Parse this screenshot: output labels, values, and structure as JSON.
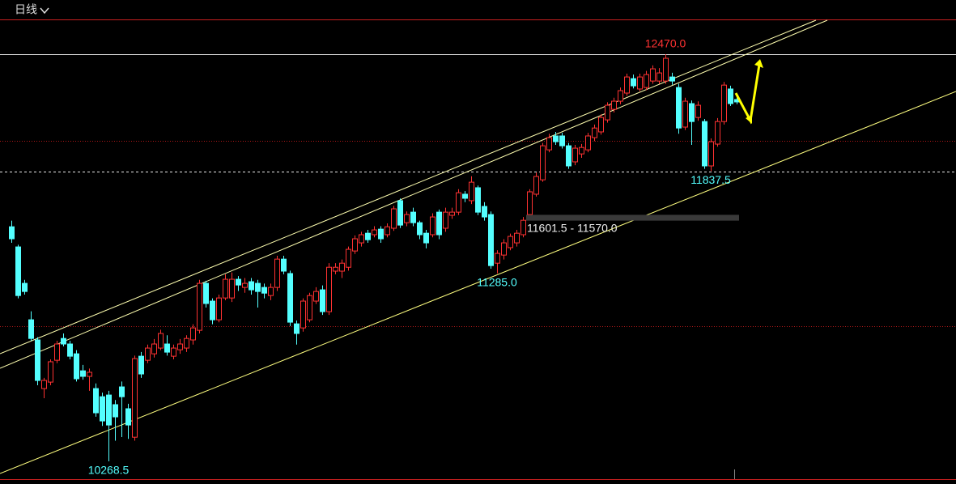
{
  "chart_data": {
    "type": "candlestick",
    "period_label": "日线",
    "up_color": "#ff3232",
    "down_color": "#54ffff",
    "candles": [
      [
        11537,
        11570,
        11450,
        11472
      ],
      [
        11428,
        11440,
        11150,
        11165
      ],
      [
        11231,
        11250,
        11170,
        11187
      ],
      [
        11034,
        11080,
        10920,
        10933
      ],
      [
        10925,
        10940,
        10680,
        10706
      ],
      [
        10662,
        10720,
        10610,
        10706
      ],
      [
        10697,
        10820,
        10680,
        10807
      ],
      [
        10815,
        10920,
        10800,
        10903
      ],
      [
        10933,
        10960,
        10890,
        10903
      ],
      [
        10903,
        10920,
        10820,
        10837
      ],
      [
        10850,
        10870,
        10700,
        10715
      ],
      [
        10758,
        10790,
        10710,
        10728
      ],
      [
        10728,
        10770,
        10650,
        10750
      ],
      [
        10662,
        10690,
        10510,
        10531
      ],
      [
        10618,
        10640,
        10460,
        10487
      ],
      [
        10627,
        10650,
        10268.5,
        10465
      ],
      [
        10575,
        10600,
        10380,
        10509
      ],
      [
        10671,
        10700,
        10400,
        10618
      ],
      [
        10553,
        10580,
        10390,
        10465
      ],
      [
        10399,
        10840,
        10380,
        10824
      ],
      [
        10837,
        10860,
        10720,
        10741
      ],
      [
        10815,
        10900,
        10800,
        10881
      ],
      [
        10850,
        10930,
        10830,
        10903
      ],
      [
        10881,
        10980,
        10870,
        10960
      ],
      [
        10903,
        10950,
        10840,
        10859
      ],
      [
        10837,
        10900,
        10820,
        10881
      ],
      [
        10872,
        10930,
        10850,
        10903
      ],
      [
        10881,
        10950,
        10860,
        10933
      ],
      [
        10925,
        11010,
        10900,
        10990
      ],
      [
        10977,
        11250,
        10960,
        11231
      ],
      [
        11231,
        11245,
        11100,
        11122
      ],
      [
        11135,
        11150,
        11010,
        11034
      ],
      [
        11034,
        11170,
        11020,
        11152
      ],
      [
        11152,
        11280,
        11140,
        11253
      ],
      [
        11152,
        11290,
        11130,
        11253
      ],
      [
        11253,
        11270,
        11190,
        11222
      ],
      [
        11209,
        11260,
        11180,
        11231
      ],
      [
        11240,
        11260,
        11170,
        11196
      ],
      [
        11231,
        11250,
        11100,
        11187
      ],
      [
        11209,
        11230,
        11150,
        11178
      ],
      [
        11165,
        11230,
        11140,
        11209
      ],
      [
        11209,
        11380,
        11190,
        11362
      ],
      [
        11362,
        11380,
        11280,
        11297
      ],
      [
        11284,
        11300,
        11000,
        11021
      ],
      [
        11012,
        11030,
        10900,
        10960
      ],
      [
        10990,
        11150,
        10970,
        11135
      ],
      [
        11034,
        11180,
        11020,
        11165
      ],
      [
        11135,
        11210,
        11120,
        11187
      ],
      [
        11196,
        11220,
        11060,
        11078
      ],
      [
        11078,
        11340,
        11060,
        11318
      ],
      [
        11297,
        11340,
        11280,
        11318
      ],
      [
        11297,
        11360,
        11260,
        11340
      ],
      [
        11318,
        11430,
        11300,
        11415
      ],
      [
        11406,
        11490,
        11390,
        11472
      ],
      [
        11450,
        11510,
        11430,
        11494
      ],
      [
        11502,
        11520,
        11450,
        11467
      ],
      [
        11494,
        11540,
        11480,
        11520
      ],
      [
        11524,
        11540,
        11450,
        11472
      ],
      [
        11494,
        11555,
        11480,
        11537
      ],
      [
        11529,
        11650,
        11515,
        11634
      ],
      [
        11678,
        11690,
        11530,
        11546
      ],
      [
        11559,
        11620,
        11540,
        11603
      ],
      [
        11616,
        11640,
        11540,
        11559
      ],
      [
        11559,
        11570,
        11470,
        11494
      ],
      [
        11502,
        11520,
        11420,
        11450
      ],
      [
        11494,
        11610,
        11480,
        11590
      ],
      [
        11616,
        11630,
        11470,
        11494
      ],
      [
        11529,
        11640,
        11510,
        11616
      ],
      [
        11599,
        11640,
        11580,
        11616
      ],
      [
        11616,
        11740,
        11600,
        11721
      ],
      [
        11713,
        11730,
        11670,
        11691
      ],
      [
        11678,
        11810,
        11660,
        11778
      ],
      [
        11748,
        11760,
        11600,
        11616
      ],
      [
        11647,
        11670,
        11570,
        11590
      ],
      [
        11603,
        11620,
        11310,
        11327
      ],
      [
        11340,
        11410,
        11285,
        11393
      ],
      [
        11384,
        11470,
        11360,
        11450
      ],
      [
        11424,
        11500,
        11410,
        11485
      ],
      [
        11450,
        11520,
        11430,
        11502
      ],
      [
        11494,
        11590,
        11480,
        11572
      ],
      [
        11603,
        11740,
        11590,
        11726
      ],
      [
        11713,
        11830,
        11700,
        11809
      ],
      [
        11791,
        11990,
        11780,
        11975
      ],
      [
        11953,
        12040,
        11940,
        12019
      ],
      [
        12028,
        12050,
        11980,
        11997
      ],
      [
        12028,
        12045,
        11960,
        11975
      ],
      [
        11975,
        11990,
        11850,
        11866
      ],
      [
        11888,
        11980,
        11870,
        11962
      ],
      [
        11931,
        11985,
        11910,
        11966
      ],
      [
        11953,
        12045,
        11940,
        12028
      ],
      [
        12019,
        12090,
        12000,
        12071
      ],
      [
        12050,
        12145,
        12035,
        12128
      ],
      [
        12115,
        12210,
        12100,
        12194
      ],
      [
        12172,
        12235,
        12155,
        12216
      ],
      [
        12216,
        12290,
        12200,
        12273
      ],
      [
        12260,
        12365,
        12245,
        12347
      ],
      [
        12338,
        12360,
        12285,
        12299
      ],
      [
        12282,
        12365,
        12270,
        12347
      ],
      [
        12290,
        12380,
        12275,
        12360
      ],
      [
        12325,
        12410,
        12310,
        12391
      ],
      [
        12325,
        12395,
        12310,
        12369
      ],
      [
        12325,
        12470,
        12310,
        12448
      ],
      [
        12347,
        12370,
        12305,
        12325
      ],
      [
        12290,
        12310,
        12040,
        12071
      ],
      [
        12076,
        12235,
        12060,
        12216
      ],
      [
        12203,
        12220,
        11980,
        12106
      ],
      [
        12128,
        12215,
        12110,
        12194
      ],
      [
        12106,
        12120,
        11850,
        11866
      ],
      [
        11866,
        12015,
        11837.5,
        11997
      ],
      [
        11984,
        12125,
        11970,
        12106
      ],
      [
        12106,
        12320,
        12090,
        12303
      ],
      [
        12282,
        12300,
        12190,
        12203
      ],
      [
        12225,
        12240,
        12200,
        12212
      ]
    ],
    "grid_levels": [
      12000,
      11000
    ],
    "price_lines": [
      {
        "value": 12470,
        "style": "solid"
      },
      {
        "value": 11837.5,
        "style": "dashed"
      }
    ],
    "annotations": [
      {
        "label": "12470.0",
        "value": 12470,
        "color": "#ff3232"
      },
      {
        "label": "10268.5",
        "value": 10268.5,
        "color": "#54ffff"
      },
      {
        "label": "11285.0",
        "value": 11285,
        "color": "#54ffff"
      },
      {
        "label": "11837.5",
        "value": 11837.5,
        "color": "#54ffff"
      }
    ],
    "zone": {
      "label": "11601.5 - 11570.0",
      "high": 11601.5,
      "low": 11570
    }
  }
}
